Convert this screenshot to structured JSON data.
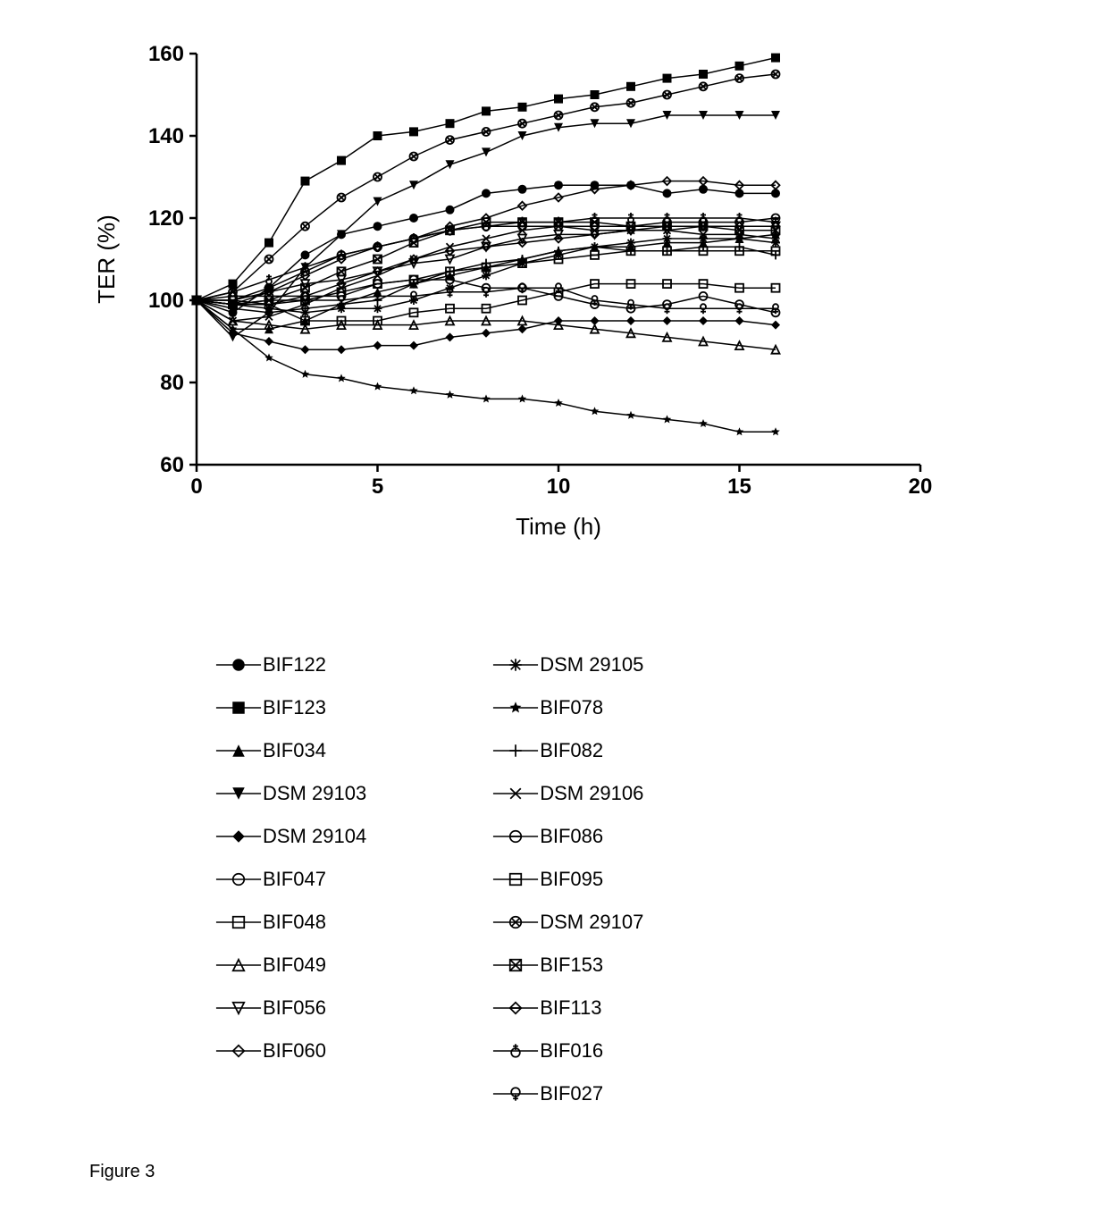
{
  "figure_caption": "Figure 3",
  "chart": {
    "type": "line-scatter",
    "xlabel": "Time (h)",
    "ylabel": "TER (%)",
    "label_fontsize": 26,
    "tick_fontsize": 24,
    "xlim": [
      0,
      20
    ],
    "ylim": [
      60,
      160
    ],
    "xtick_step": 5,
    "ytick_step": 20,
    "background_color": "#ffffff",
    "axis_color": "#000000",
    "axis_width": 2.5,
    "tick_length": 8,
    "line_color": "#000000",
    "line_width": 1.5,
    "marker_size": 12,
    "x_values": [
      0,
      1,
      2,
      3,
      4,
      5,
      6,
      7,
      8,
      9,
      10,
      11,
      12,
      13,
      14,
      15,
      16
    ],
    "series": [
      {
        "id": "BIF122",
        "marker": "circle-filled",
        "y": [
          100,
          97,
          103,
          111,
          116,
          118,
          120,
          122,
          126,
          127,
          128,
          128,
          128,
          126,
          127,
          126,
          126
        ]
      },
      {
        "id": "BIF123",
        "marker": "square-filled",
        "y": [
          100,
          104,
          114,
          129,
          134,
          140,
          141,
          143,
          146,
          147,
          149,
          150,
          152,
          154,
          155,
          157,
          159
        ]
      },
      {
        "id": "BIF034",
        "marker": "triangle-up-filled",
        "y": [
          100,
          93,
          93,
          95,
          99,
          102,
          104,
          106,
          108,
          110,
          112,
          113,
          113,
          114,
          114,
          115,
          116
        ]
      },
      {
        "id": "DSM 29103",
        "marker": "triangle-down-filled",
        "y": [
          100,
          91,
          97,
          108,
          116,
          124,
          128,
          133,
          136,
          140,
          142,
          143,
          143,
          145,
          145,
          145,
          145
        ]
      },
      {
        "id": "DSM 29104",
        "marker": "diamond-filled",
        "y": [
          100,
          92,
          90,
          88,
          88,
          89,
          89,
          91,
          92,
          93,
          95,
          95,
          95,
          95,
          95,
          95,
          94
        ]
      },
      {
        "id": "BIF047",
        "marker": "circle-open",
        "y": [
          100,
          101,
          101,
          101,
          101,
          104,
          105,
          105,
          103,
          103,
          101,
          99,
          98,
          99,
          101,
          99,
          97
        ]
      },
      {
        "id": "BIF048",
        "marker": "square-open",
        "y": [
          100,
          100,
          99,
          95,
          95,
          95,
          97,
          98,
          98,
          100,
          102,
          104,
          104,
          104,
          104,
          103,
          103
        ]
      },
      {
        "id": "BIF049",
        "marker": "triangle-up-open",
        "y": [
          100,
          95,
          94,
          93,
          94,
          94,
          94,
          95,
          95,
          95,
          94,
          93,
          92,
          91,
          90,
          89,
          88
        ]
      },
      {
        "id": "BIF056",
        "marker": "triangle-down-open",
        "y": [
          100,
          100,
          102,
          104,
          105,
          107,
          109,
          110,
          113,
          115,
          116,
          116,
          117,
          117,
          118,
          118,
          118
        ]
      },
      {
        "id": "BIF060",
        "marker": "diamond-open",
        "y": [
          100,
          99,
          102,
          106,
          110,
          113,
          115,
          118,
          120,
          123,
          125,
          127,
          128,
          129,
          129,
          128,
          128
        ]
      },
      {
        "id": "DSM 29105",
        "marker": "asterisk",
        "y": [
          100,
          99,
          98,
          97,
          98,
          98,
          100,
          103,
          106,
          109,
          111,
          113,
          114,
          115,
          115,
          115,
          114
        ]
      },
      {
        "id": "BIF078",
        "marker": "star-filled",
        "y": [
          100,
          93,
          86,
          82,
          81,
          79,
          78,
          77,
          76,
          76,
          75,
          73,
          72,
          71,
          70,
          68,
          68
        ]
      },
      {
        "id": "BIF082",
        "marker": "plus",
        "y": [
          100,
          98,
          97,
          98,
          99,
          100,
          104,
          107,
          109,
          110,
          112,
          113,
          112,
          112,
          113,
          113,
          111
        ]
      },
      {
        "id": "DSM 29106",
        "marker": "cross",
        "y": [
          100,
          95,
          96,
          99,
          103,
          106,
          110,
          113,
          115,
          117,
          118,
          117,
          117,
          117,
          116,
          116,
          115
        ]
      },
      {
        "id": "BIF086",
        "marker": "circle-open-bar",
        "y": [
          100,
          100,
          103,
          107,
          111,
          113,
          115,
          117,
          118,
          118,
          118,
          118,
          118,
          119,
          119,
          119,
          120
        ]
      },
      {
        "id": "BIF095",
        "marker": "square-open-bar",
        "y": [
          100,
          99,
          100,
          100,
          102,
          104,
          105,
          107,
          108,
          109,
          110,
          111,
          112,
          112,
          112,
          112,
          112
        ]
      },
      {
        "id": "DSM 29107",
        "marker": "circle-open-x",
        "y": [
          100,
          102,
          110,
          118,
          125,
          130,
          135,
          139,
          141,
          143,
          145,
          147,
          148,
          150,
          152,
          154,
          155
        ]
      },
      {
        "id": "BIF153",
        "marker": "square-open-x",
        "y": [
          100,
          99,
          100,
          103,
          107,
          110,
          114,
          117,
          119,
          119,
          119,
          119,
          118,
          118,
          118,
          117,
          117
        ]
      },
      {
        "id": "BIF113",
        "marker": "diamond-open-bar",
        "y": [
          100,
          99,
          99,
          101,
          104,
          107,
          110,
          112,
          113,
          114,
          115,
          116,
          117,
          118,
          118,
          118,
          118
        ]
      },
      {
        "id": "BIF016",
        "marker": "circle-open-plus",
        "y": [
          100,
          102,
          105,
          108,
          111,
          113,
          115,
          117,
          118,
          119,
          119,
          120,
          120,
          120,
          120,
          120,
          119
        ]
      },
      {
        "id": "BIF027",
        "marker": "circle-open-down",
        "y": [
          100,
          99,
          99,
          100,
          100,
          101,
          101,
          102,
          102,
          103,
          103,
          100,
          99,
          98,
          98,
          98,
          98
        ]
      }
    ]
  },
  "legend": {
    "left_col": [
      {
        "label": "BIF122",
        "marker": "circle-filled"
      },
      {
        "label": "BIF123",
        "marker": "square-filled"
      },
      {
        "label": "BIF034",
        "marker": "triangle-up-filled"
      },
      {
        "label": "DSM 29103",
        "marker": "triangle-down-filled"
      },
      {
        "label": "DSM 29104",
        "marker": "diamond-filled"
      },
      {
        "label": "BIF047",
        "marker": "circle-open"
      },
      {
        "label": "BIF048",
        "marker": "square-open"
      },
      {
        "label": "BIF049",
        "marker": "triangle-up-open"
      },
      {
        "label": "BIF056",
        "marker": "triangle-down-open"
      },
      {
        "label": "BIF060",
        "marker": "diamond-open"
      }
    ],
    "right_col": [
      {
        "label": "DSM 29105",
        "marker": "asterisk"
      },
      {
        "label": "BIF078",
        "marker": "star-filled"
      },
      {
        "label": "BIF082",
        "marker": "plus"
      },
      {
        "label": "DSM 29106",
        "marker": "cross"
      },
      {
        "label": "BIF086",
        "marker": "circle-open-bar"
      },
      {
        "label": "BIF095",
        "marker": "square-open-bar"
      },
      {
        "label": "DSM 29107",
        "marker": "circle-open-x"
      },
      {
        "label": "BIF153",
        "marker": "square-open-x"
      },
      {
        "label": "BIF113",
        "marker": "diamond-open-bar"
      },
      {
        "label": "BIF016",
        "marker": "circle-open-plus"
      },
      {
        "label": "BIF027",
        "marker": "circle-open-down"
      }
    ]
  }
}
